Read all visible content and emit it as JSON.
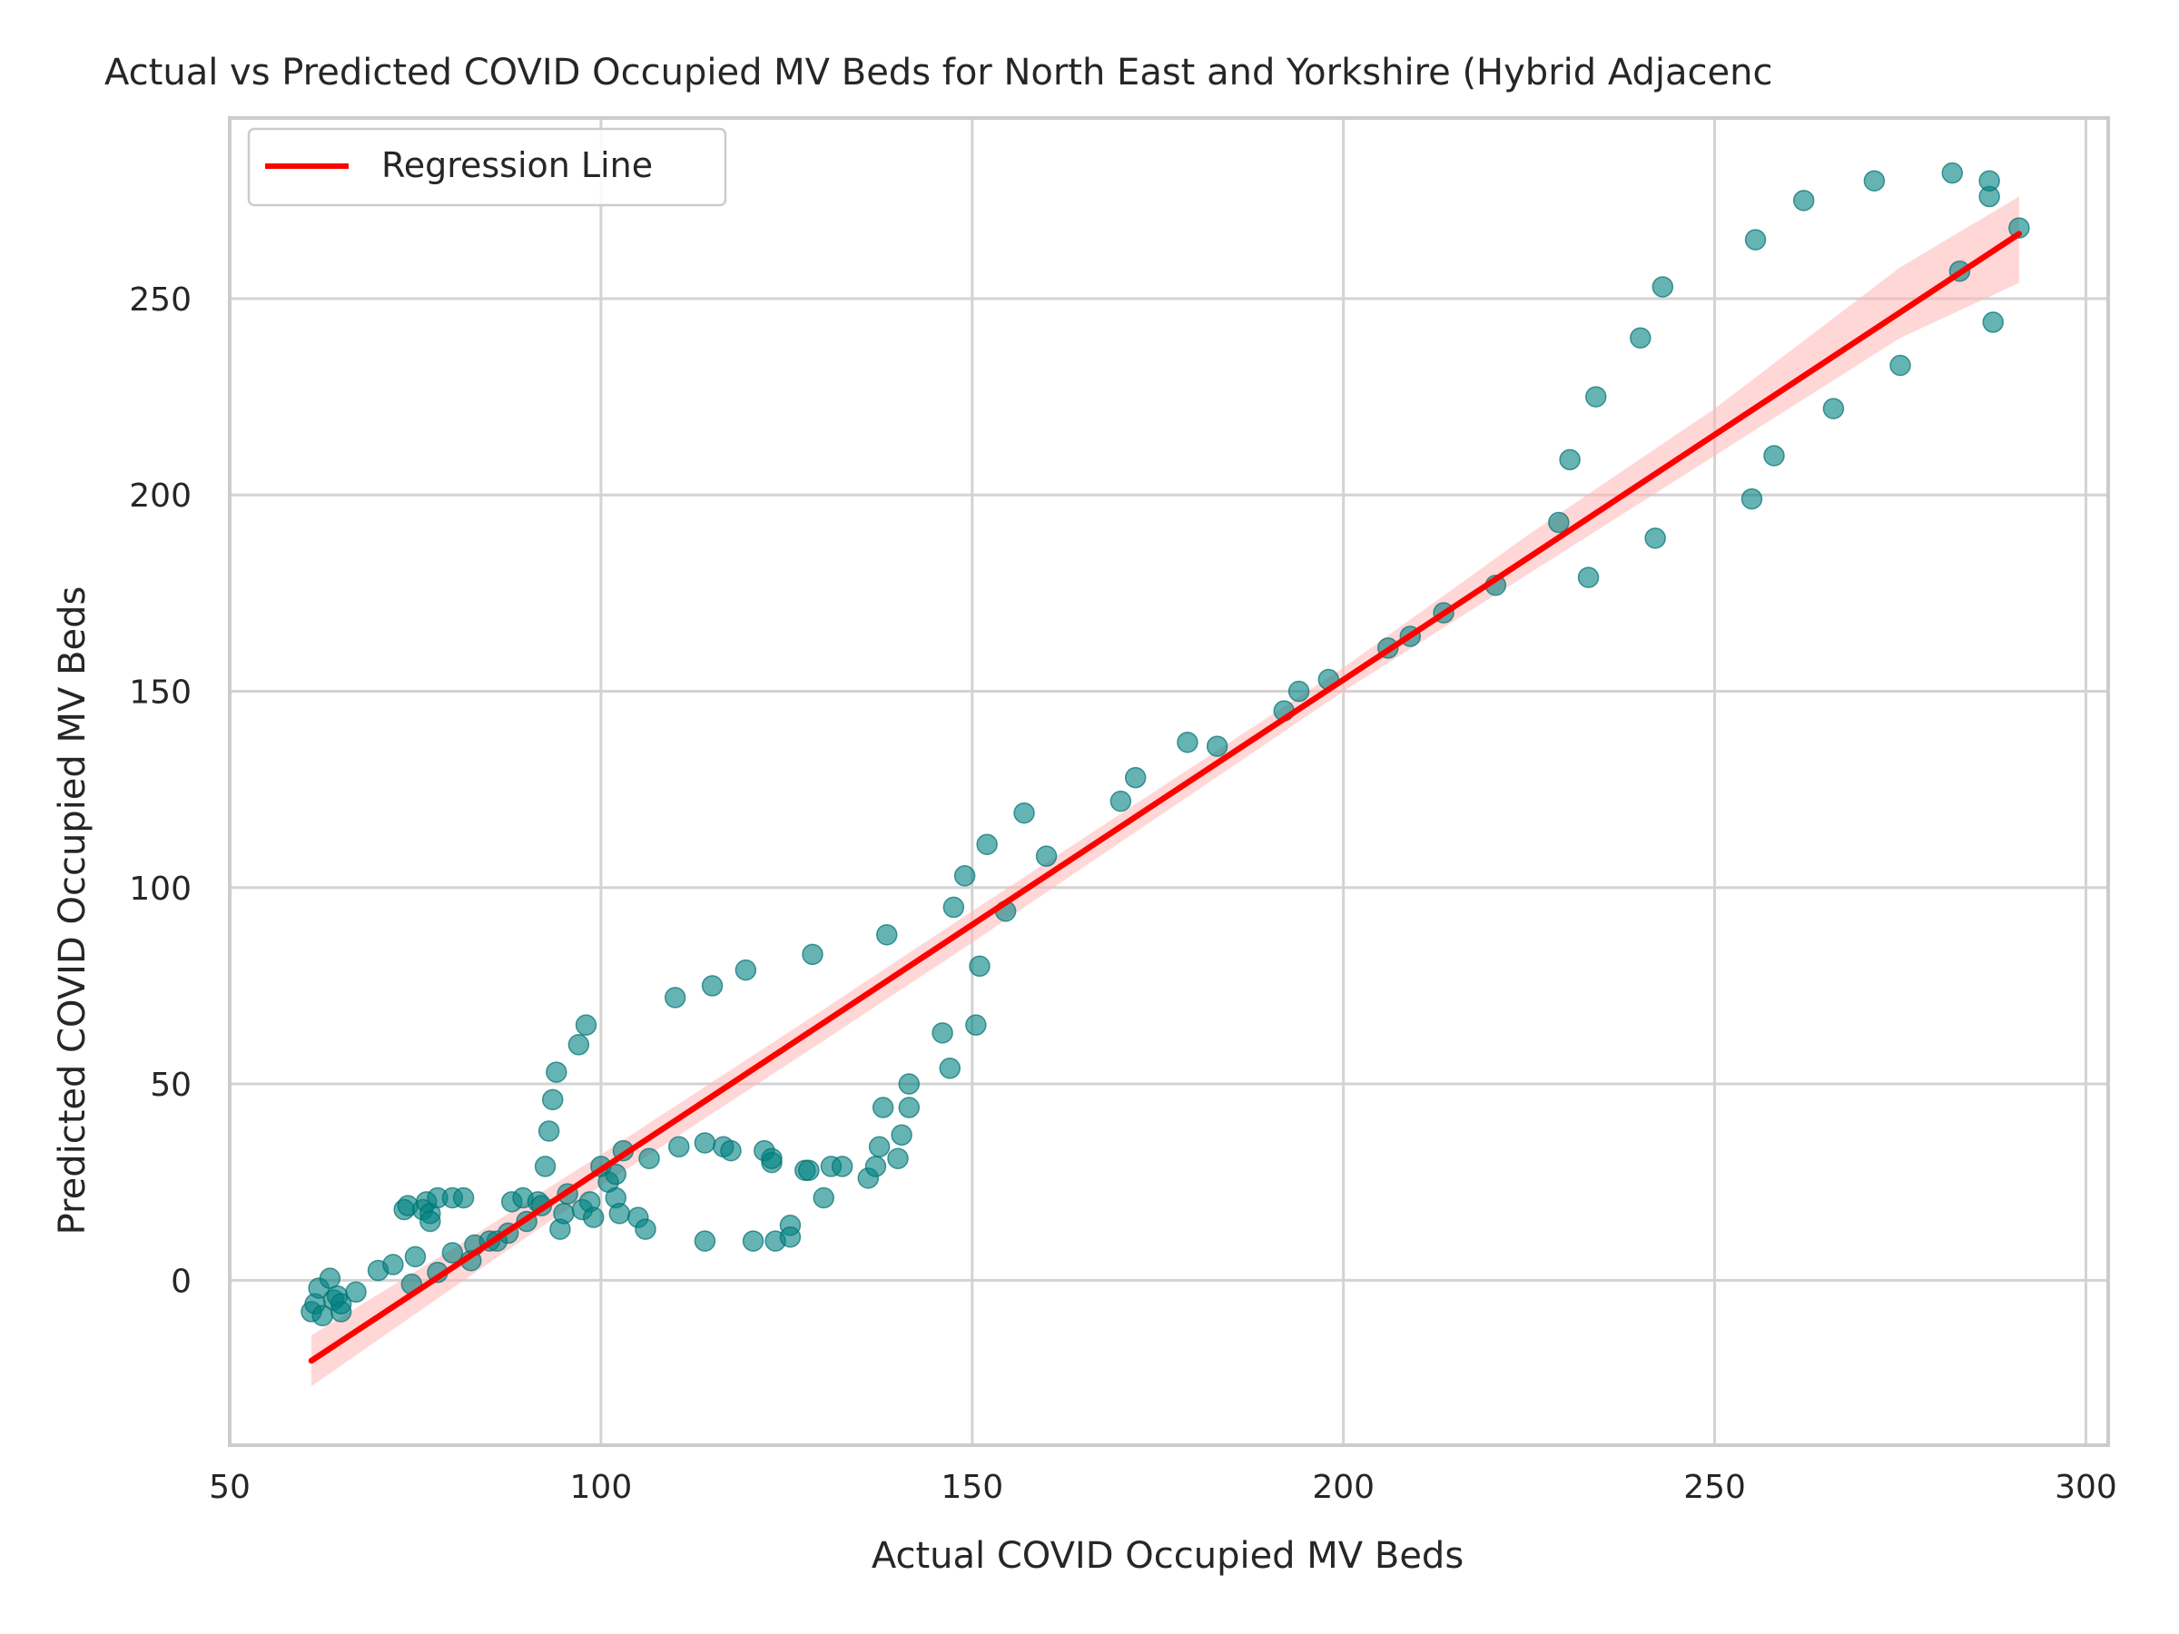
{
  "chart_data": {
    "type": "scatter",
    "title": "Actual vs Predicted COVID Occupied MV Beds for North East and Yorkshire (Hybrid Adjacenc",
    "xlabel": "Actual COVID Occupied MV Beds",
    "ylabel": "Predicted COVID Occupied MV Beds",
    "xlim": [
      50,
      303
    ],
    "ylim": [
      -42,
      296
    ],
    "xticks": [
      50,
      100,
      150,
      200,
      250,
      300
    ],
    "yticks": [
      0,
      50,
      100,
      150,
      200,
      250
    ],
    "grid": true,
    "legend": {
      "position": "top-left",
      "entries": [
        "Regression Line"
      ]
    },
    "colors": {
      "points": "#008080",
      "regression": "#ff0000",
      "band": "#ffb6b6"
    },
    "regression_line": {
      "name": "Regression Line",
      "x": [
        61,
        291
      ],
      "y": [
        -20.5,
        266.5
      ]
    },
    "confidence_band": {
      "x": [
        61,
        80,
        100,
        130,
        150,
        175,
        200,
        225,
        250,
        275,
        291
      ],
      "lower": [
        -27,
        -2,
        24,
        61,
        86,
        118,
        150,
        180,
        210,
        240,
        254
      ],
      "upper": [
        -14,
        8,
        32,
        69,
        94,
        125,
        156,
        190,
        222,
        258,
        276
      ]
    },
    "points": {
      "x": [
        61,
        61.5,
        62,
        62.5,
        63.5,
        64,
        64.5,
        65,
        65,
        67,
        70,
        72,
        73.5,
        74,
        74.5,
        75,
        76,
        76.5,
        77,
        77,
        78,
        78,
        80,
        80,
        81.5,
        82.5,
        83,
        85,
        86,
        87.5,
        88,
        89.5,
        90,
        91.5,
        92,
        92.5,
        93,
        93.5,
        94,
        94.5,
        95,
        95.5,
        97,
        97.5,
        98,
        98.5,
        99,
        100,
        101,
        102,
        102,
        102.5,
        103,
        105,
        106,
        106.5,
        110,
        110.5,
        114,
        114,
        115,
        116.5,
        117.5,
        119.5,
        120.5,
        122,
        123,
        123,
        123.5,
        125.5,
        125.5,
        127.5,
        128,
        128.5,
        130,
        131,
        132.5,
        136,
        137,
        137.5,
        138,
        138.5,
        140,
        140.5,
        141.5,
        141.5,
        146,
        147,
        147.5,
        149,
        150.5,
        151,
        152,
        154.5,
        157,
        160,
        170,
        172,
        179,
        183,
        192,
        194,
        198,
        206,
        209,
        213.5,
        220.5,
        229,
        230.5,
        233,
        234,
        240,
        242,
        243,
        255,
        255.5,
        258,
        262,
        266,
        271.5,
        275,
        282,
        283,
        287,
        287,
        287.5,
        291
      ],
      "y": [
        -8,
        -6,
        -2,
        -9,
        0.5,
        -5,
        -4,
        -8,
        -6,
        -3,
        2.5,
        4,
        18,
        19,
        -1,
        6,
        18,
        20,
        17,
        15,
        21,
        2,
        21,
        7,
        21,
        5,
        9,
        10,
        10,
        12,
        20,
        21,
        15,
        20,
        19,
        29,
        38,
        46,
        53,
        13,
        17,
        22,
        60,
        18,
        65,
        20,
        16,
        29,
        25,
        27,
        21,
        17,
        33,
        16,
        13,
        31,
        72,
        34,
        10,
        35,
        75,
        34,
        33,
        79,
        10,
        33,
        30,
        31,
        10,
        14,
        11,
        28,
        28,
        83,
        21,
        29,
        29,
        26,
        29,
        34,
        44,
        88,
        31,
        37,
        50,
        44,
        63,
        54,
        95,
        103,
        65,
        80,
        111,
        94,
        119,
        108,
        122,
        128,
        137,
        136,
        145,
        150,
        153,
        161,
        164,
        170,
        177,
        193,
        209,
        179,
        225,
        240,
        189,
        253,
        199,
        265,
        210,
        275,
        222,
        280,
        233,
        282,
        257,
        276,
        280,
        244,
        268
      ]
    }
  }
}
